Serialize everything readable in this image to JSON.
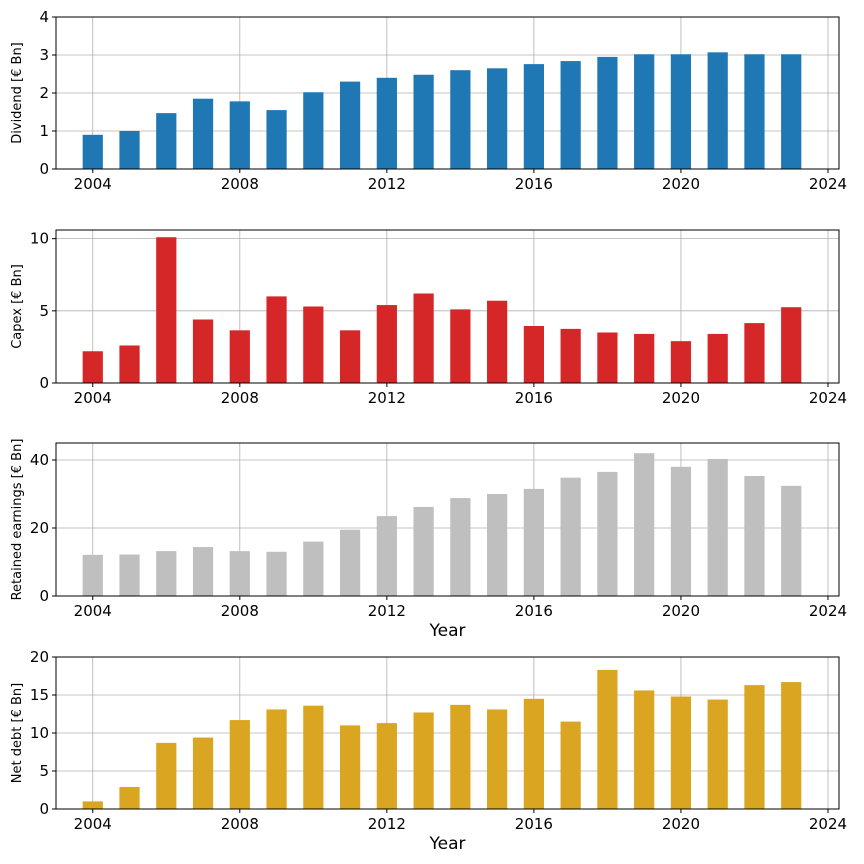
{
  "chart_data": [
    {
      "type": "bar",
      "ylabel": "Dividend [€ Bn]",
      "xlabel": "",
      "color": "#1f77b4",
      "x": [
        2004,
        2005,
        2006,
        2007,
        2008,
        2009,
        2010,
        2011,
        2012,
        2013,
        2014,
        2015,
        2016,
        2017,
        2018,
        2019,
        2020,
        2021,
        2022,
        2023
      ],
      "values": [
        0.9,
        1.0,
        1.47,
        1.85,
        1.78,
        1.55,
        2.02,
        2.3,
        2.4,
        2.48,
        2.6,
        2.65,
        2.76,
        2.84,
        2.95,
        3.02,
        3.02,
        3.07,
        3.02,
        3.02
      ],
      "xlim": [
        2003,
        2024.3
      ],
      "ylim": [
        0,
        4
      ],
      "xticks": [
        "2004",
        "2008",
        "2012",
        "2016",
        "2020",
        "2024"
      ],
      "yticks": [
        "0",
        "1",
        "2",
        "3",
        "4"
      ],
      "grid": true
    },
    {
      "type": "bar",
      "ylabel": "Capex [€ Bn]",
      "xlabel": "",
      "color": "#d62728",
      "x": [
        2004,
        2005,
        2006,
        2007,
        2008,
        2009,
        2010,
        2011,
        2012,
        2013,
        2014,
        2015,
        2016,
        2017,
        2018,
        2019,
        2020,
        2021,
        2022,
        2023
      ],
      "values": [
        2.2,
        2.6,
        10.1,
        4.4,
        3.65,
        6.0,
        5.3,
        3.65,
        5.4,
        6.2,
        5.1,
        5.7,
        3.95,
        3.75,
        3.5,
        3.4,
        2.9,
        3.4,
        4.15,
        5.25
      ],
      "xlim": [
        2003,
        2024.3
      ],
      "ylim": [
        0,
        10.6
      ],
      "xticks": [
        "2004",
        "2008",
        "2012",
        "2016",
        "2020",
        "2024"
      ],
      "yticks": [
        "0",
        "5",
        "10"
      ],
      "ytick_values": [
        0,
        5,
        10
      ],
      "grid": true
    },
    {
      "type": "bar",
      "ylabel": "Retained earnings [€ Bn]",
      "xlabel": "Year",
      "color": "#bfbfbf",
      "x": [
        2004,
        2005,
        2006,
        2007,
        2008,
        2009,
        2010,
        2011,
        2012,
        2013,
        2014,
        2015,
        2016,
        2017,
        2018,
        2019,
        2020,
        2021,
        2022,
        2023
      ],
      "values": [
        12.1,
        12.2,
        13.2,
        14.4,
        13.2,
        13.0,
        16.0,
        19.5,
        23.5,
        26.2,
        28.8,
        30.0,
        31.5,
        34.8,
        36.5,
        42.0,
        38.0,
        40.3,
        35.3,
        32.4
      ],
      "xlim": [
        2003,
        2024.3
      ],
      "ylim": [
        0,
        45
      ],
      "xticks": [
        "2004",
        "2008",
        "2012",
        "2016",
        "2020",
        "2024"
      ],
      "yticks": [
        "0",
        "20",
        "40"
      ],
      "ytick_values": [
        0,
        20,
        40
      ],
      "grid": true
    },
    {
      "type": "bar",
      "ylabel": "Net debt [€ Bn]",
      "xlabel": "Year",
      "color": "#daa520",
      "x": [
        2004,
        2005,
        2006,
        2007,
        2008,
        2009,
        2010,
        2011,
        2012,
        2013,
        2014,
        2015,
        2016,
        2017,
        2018,
        2019,
        2020,
        2021,
        2022,
        2023
      ],
      "values": [
        1.0,
        2.9,
        8.7,
        9.4,
        11.7,
        13.1,
        13.6,
        11.0,
        11.3,
        12.7,
        13.7,
        13.1,
        14.5,
        11.5,
        18.3,
        15.6,
        14.8,
        14.4,
        16.3,
        16.7
      ],
      "xlim": [
        2003,
        2024.3
      ],
      "ylim": [
        0,
        20
      ],
      "xticks": [
        "2004",
        "2008",
        "2012",
        "2016",
        "2020",
        "2024"
      ],
      "yticks": [
        "0",
        "5",
        "10",
        "15",
        "20"
      ],
      "ytick_values": [
        0,
        5,
        10,
        15,
        20
      ],
      "grid": true
    }
  ]
}
